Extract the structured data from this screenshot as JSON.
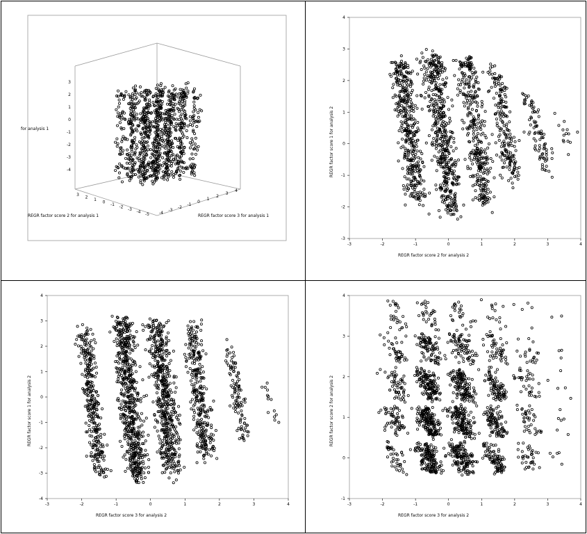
{
  "chart_data": [
    {
      "type": "scatter",
      "panel": "3d",
      "xlabel": "REGR factor score  2 for analysis  1",
      "ylabel": "REGR factor score  3 for analysis  1",
      "zlabel": "for analysis  1",
      "view": "3d",
      "z_ticks": [
        "3",
        "2",
        "1",
        "0",
        "-1",
        "-2",
        "-3",
        "-4"
      ],
      "x_ticks": [
        "3",
        "2",
        "1",
        "0",
        "-1",
        "-2",
        "-3",
        "-4",
        "-5"
      ],
      "y_ticks": [
        "-4",
        "-3",
        "-2",
        "-1",
        "0",
        "1",
        "2",
        "3",
        "4"
      ],
      "clusters": [
        {
          "x": -2.4,
          "n": 60
        },
        {
          "x": -1.6,
          "n": 140
        },
        {
          "x": -0.8,
          "n": 200
        },
        {
          "x": 0.0,
          "n": 220
        },
        {
          "x": 0.8,
          "n": 200
        },
        {
          "x": 1.6,
          "n": 140
        },
        {
          "x": 2.4,
          "n": 70
        }
      ]
    },
    {
      "type": "scatter",
      "panel": "tr",
      "xlabel": "REGR factor score  2 for analysis  2",
      "ylabel": "REGR factor score  1 for analysis  2",
      "xlim": [
        -3,
        4
      ],
      "ylim": [
        -3,
        4
      ],
      "x_ticks": [
        "-3",
        "-2",
        "-1",
        "0",
        "1",
        "2",
        "3",
        "4"
      ],
      "y_ticks": [
        "-3",
        "-2",
        "-1",
        "0",
        "1",
        "2",
        "3",
        "4"
      ],
      "bands": [
        {
          "x": -1.2,
          "ymin": -1.8,
          "ymax": 2.6,
          "n": 420,
          "width": 0.45
        },
        {
          "x": -0.2,
          "ymin": -2.2,
          "ymax": 2.8,
          "n": 520,
          "width": 0.5
        },
        {
          "x": 0.8,
          "ymin": -1.9,
          "ymax": 2.7,
          "n": 380,
          "width": 0.45
        },
        {
          "x": 1.7,
          "ymin": -1.2,
          "ymax": 2.4,
          "n": 200,
          "width": 0.4
        },
        {
          "x": 2.7,
          "ymin": -0.9,
          "ymax": 1.5,
          "n": 90,
          "width": 0.35
        },
        {
          "x": 3.5,
          "ymin": -0.2,
          "ymax": 1.1,
          "n": 14,
          "width": 0.3
        }
      ]
    },
    {
      "type": "scatter",
      "panel": "bl",
      "xlabel": "REGR factor score  3 for analysis  2",
      "ylabel": "REGR factor score  1 for analysis  2",
      "xlim": [
        -3,
        4
      ],
      "ylim": [
        -4,
        4
      ],
      "x_ticks": [
        "-3",
        "-2",
        "-1",
        "0",
        "1",
        "2",
        "3",
        "4"
      ],
      "y_ticks": [
        "-4",
        "-3",
        "-2",
        "-1",
        "0",
        "1",
        "2",
        "3",
        "4"
      ],
      "bands": [
        {
          "x": -1.7,
          "ymin": -3.0,
          "ymax": 2.6,
          "n": 330,
          "width": 0.4
        },
        {
          "x": -0.6,
          "ymin": -3.2,
          "ymax": 3.1,
          "n": 650,
          "width": 0.5
        },
        {
          "x": 0.4,
          "ymin": -3.0,
          "ymax": 3.0,
          "n": 560,
          "width": 0.5
        },
        {
          "x": 1.4,
          "ymin": -2.4,
          "ymax": 2.9,
          "n": 320,
          "width": 0.45
        },
        {
          "x": 2.5,
          "ymin": -1.8,
          "ymax": 2.0,
          "n": 110,
          "width": 0.35
        },
        {
          "x": 3.4,
          "ymin": -1.0,
          "ymax": 1.0,
          "n": 14,
          "width": 0.3
        }
      ]
    },
    {
      "type": "scatter",
      "panel": "br",
      "xlabel": "REGR factor score  3 for analysis  2",
      "ylabel": "REGR factor score  2 for analysis  2",
      "xlim": [
        -3,
        4
      ],
      "ylim": [
        -1,
        4
      ],
      "x_ticks": [
        "-3",
        "-2",
        "-1",
        "0",
        "1",
        "2",
        "3",
        "4"
      ],
      "y_ticks": [
        "-1",
        "0",
        "1",
        "2",
        "3",
        "4"
      ],
      "grid_clusters": {
        "x_centers": [
          -1.6,
          -0.6,
          0.4,
          1.4,
          2.4,
          3.4
        ],
        "y_centers": [
          0.0,
          0.9,
          1.8,
          2.7,
          3.5
        ],
        "counts": [
          [
            40,
            60,
            55,
            40,
            25
          ],
          [
            160,
            170,
            150,
            90,
            30
          ],
          [
            150,
            160,
            140,
            80,
            25
          ],
          [
            90,
            100,
            90,
            50,
            15
          ],
          [
            35,
            40,
            35,
            20,
            5
          ],
          [
            5,
            6,
            5,
            3,
            2
          ]
        ]
      }
    }
  ]
}
